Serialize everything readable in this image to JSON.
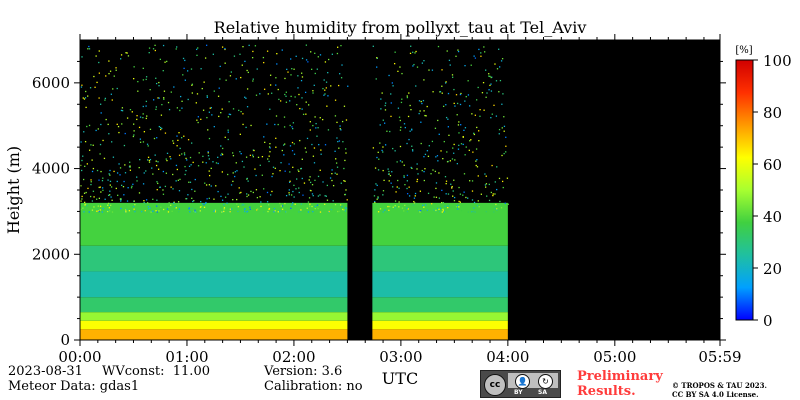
{
  "chart_data": {
    "type": "heatmap",
    "title": "Relative humidity from pollyxt_tau at Tel_Aviv",
    "xlabel": "UTC",
    "ylabel": "Height (m)",
    "xlim": [
      "00:00",
      "05:59"
    ],
    "ylim": [
      0,
      7000
    ],
    "x_ticks": [
      "00:00",
      "01:00",
      "02:00",
      "03:00",
      "04:00",
      "05:00",
      "05:59"
    ],
    "y_ticks": [
      0,
      2000,
      4000,
      6000
    ],
    "colorbar": {
      "unit": "[%]",
      "range": [
        0,
        100
      ],
      "ticks": [
        0,
        20,
        40,
        60,
        80,
        100
      ],
      "colormap": "jet",
      "colors": [
        "#0000ff",
        "#00a0ff",
        "#20c0a0",
        "#40d040",
        "#a8ff30",
        "#ffff00",
        "#ff9900",
        "#ff3000",
        "#d00000"
      ]
    },
    "background": "#000000",
    "data_gap": [
      "02:30",
      "02:44"
    ],
    "data_end": "04:00",
    "profile_segments": [
      {
        "from_height_m": 0,
        "to_height_m": 250,
        "rh_percent": 72
      },
      {
        "from_height_m": 250,
        "to_height_m": 450,
        "rh_percent": 62
      },
      {
        "from_height_m": 450,
        "to_height_m": 650,
        "rh_percent": 48
      },
      {
        "from_height_m": 650,
        "to_height_m": 1000,
        "rh_percent": 32
      },
      {
        "from_height_m": 1000,
        "to_height_m": 1600,
        "rh_percent": 24
      },
      {
        "from_height_m": 1600,
        "to_height_m": 2200,
        "rh_percent": 30
      },
      {
        "from_height_m": 2200,
        "to_height_m": 3200,
        "rh_percent": 38
      }
    ]
  },
  "info": {
    "date": "2023-08-31",
    "wvconst": "WVconst:  11.00",
    "meteor": "Meteor Data: gdas1",
    "version": "Version: 3.6",
    "calibration": "Calibration: no"
  },
  "badge": {
    "cc": "cc",
    "by": "BY",
    "sa": "SA"
  },
  "preliminary": [
    "Preliminary",
    "Results."
  ],
  "copyright": [
    "© TROPOS & TAU 2023.",
    "CC BY SA 4.0 License."
  ]
}
